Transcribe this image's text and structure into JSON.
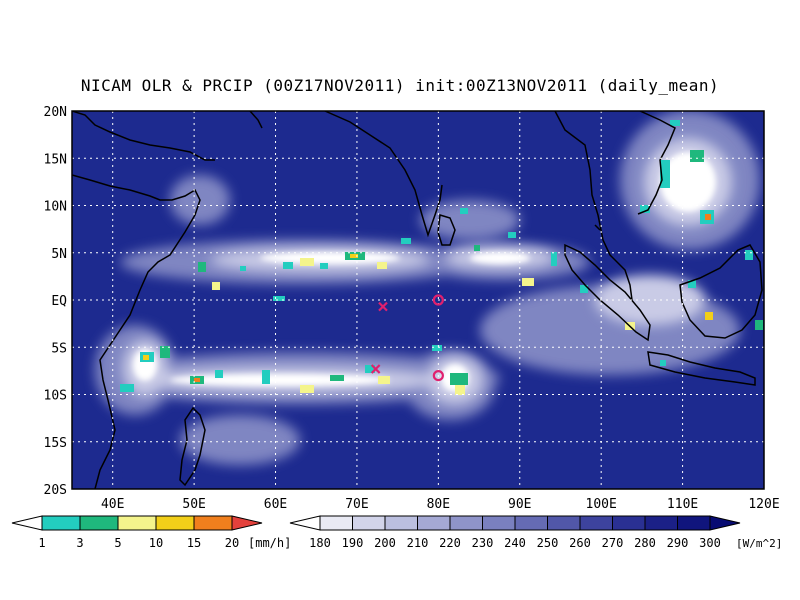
{
  "title": "NICAM OLR & PRCIP (00Z17NOV2011) init:00Z13NOV2011 (daily_mean)",
  "map": {
    "lon_range": [
      35,
      120
    ],
    "lat_range": [
      -20,
      20
    ],
    "lat_labels": [
      "20N",
      "15N",
      "10N",
      "5N",
      "EQ",
      "5S",
      "10S",
      "15S",
      "20S"
    ],
    "lon_labels": [
      "40E",
      "50E",
      "60E",
      "70E",
      "80E",
      "90E",
      "100E",
      "110E",
      "120E"
    ],
    "lon_ticks": [
      40,
      50,
      60,
      70,
      80,
      90,
      100,
      110,
      120
    ],
    "lat_ticks": [
      20,
      15,
      10,
      5,
      0,
      -5,
      -10,
      -15,
      -20
    ],
    "ocean_color": "#1d2a8f",
    "markers": [
      {
        "type": "x",
        "lon": 73.2,
        "lat": -0.7
      },
      {
        "type": "circle",
        "lon": 80,
        "lat": 0
      },
      {
        "type": "x",
        "lon": 72.3,
        "lat": -7.3
      },
      {
        "type": "circle",
        "lon": 80,
        "lat": -8
      }
    ],
    "marker_color": "#e0206e",
    "cloud_bands": [
      {
        "name": "north-itcz",
        "lon": [
          55,
          96
        ],
        "lat": [
          3,
          7
        ]
      },
      {
        "name": "south-itcz",
        "lon": [
          38,
          90
        ],
        "lat": [
          -11,
          -5
        ]
      },
      {
        "name": "typhoon-south-china-sea",
        "lon": [
          106,
          114
        ],
        "lat": [
          9,
          17
        ]
      },
      {
        "name": "maritime-continent",
        "lon": [
          92,
          120
        ],
        "lat": [
          -9,
          4
        ]
      }
    ]
  },
  "precip_legend": {
    "labels": [
      "1",
      "3",
      "5",
      "10",
      "15",
      "20"
    ],
    "unit": "[mm/h]",
    "colors": [
      "#ffffff",
      "#23cdbf",
      "#1fb87d",
      "#f4f48c",
      "#f2cf19",
      "#f07f1d",
      "#e3413c"
    ]
  },
  "olr_legend": {
    "labels": [
      "180",
      "190",
      "200",
      "210",
      "220",
      "230",
      "240",
      "250",
      "260",
      "270",
      "280",
      "290",
      "300"
    ],
    "unit": "[W/m^2]",
    "colors": [
      "#ffffff",
      "#e9eaf4",
      "#d2d4ea",
      "#bbbfdf",
      "#a5a9d4",
      "#8f94c9",
      "#7a80bf",
      "#656bb4",
      "#5157a9",
      "#3d439e",
      "#2a3093",
      "#1b2087",
      "#10157d",
      "#070b72"
    ]
  }
}
